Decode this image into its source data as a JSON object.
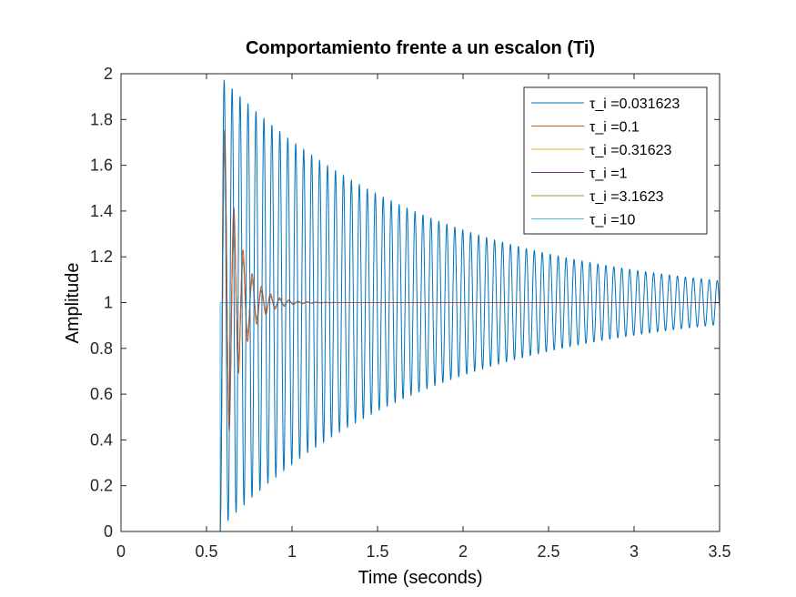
{
  "chart_data": {
    "type": "line",
    "title": "Comportamiento frente a un escalon (Ti)",
    "xlabel": "Time (seconds)",
    "ylabel": "Amplitude",
    "xlim": [
      0,
      3.5
    ],
    "ylim": [
      0,
      2
    ],
    "xticks": [
      0,
      0.5,
      1,
      1.5,
      2,
      2.5,
      3,
      3.5
    ],
    "xtick_labels": [
      "0",
      "0.5",
      "1",
      "1.5",
      "2",
      "2.5",
      "3",
      "3.5"
    ],
    "yticks": [
      0,
      0.2,
      0.4,
      0.6,
      0.8,
      1,
      1.2,
      1.4,
      1.6,
      1.8,
      2
    ],
    "ytick_labels": [
      "0",
      "0.2",
      "0.4",
      "0.6",
      "0.8",
      "1",
      "1.2",
      "1.4",
      "1.6",
      "1.8",
      "2"
    ],
    "grid": false,
    "legend_position": "top-right",
    "step_time": 0.58,
    "series": [
      {
        "name": "τ_i =0.031623",
        "color": "#0072BD",
        "first_peak": 1.97,
        "decay_time": 1.25,
        "period": 0.0465
      },
      {
        "name": "τ_i =0.1",
        "color": "#D95319",
        "first_peak": 1.75,
        "decay_time": 0.09,
        "period": 0.0536
      },
      {
        "name": "τ_i =0.31623",
        "color": "#EDB120",
        "first_peak": 1.7,
        "decay_time": 0.085,
        "period": 0.0536
      },
      {
        "name": "τ_i =1",
        "color": "#7E2F8E",
        "first_peak": 1.68,
        "decay_time": 0.083,
        "period": 0.0536
      },
      {
        "name": "τ_i =3.1623",
        "color": "#77AC30",
        "first_peak": 1.66,
        "decay_time": 0.082,
        "period": 0.0536
      },
      {
        "name": "τ_i =10",
        "color": "#4DBEEE",
        "first_peak": 1.0,
        "decay_time": 0.02,
        "period": 0.0536
      }
    ]
  }
}
